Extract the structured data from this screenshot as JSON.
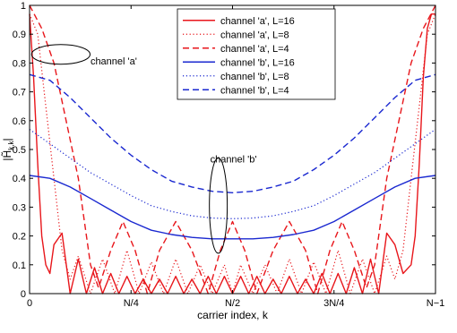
{
  "chart_data": {
    "type": "line",
    "title": "",
    "xlabel": "carrier index, k",
    "ylabel": "|H̃k,k|",
    "ylabel_main": "|H̃",
    "ylabel_sub": "k,k",
    "ylabel_close": "|",
    "xlim": [
      0,
      1
    ],
    "ylim": [
      0,
      1
    ],
    "x_ticks": [
      {
        "value": 0,
        "label": "0"
      },
      {
        "value": 0.25,
        "label": "N/4"
      },
      {
        "value": 0.5,
        "label": "N/2"
      },
      {
        "value": 0.75,
        "label": "3N/4"
      },
      {
        "value": 1,
        "label": "N−1"
      }
    ],
    "y_ticks": [
      {
        "value": 0,
        "label": "0"
      },
      {
        "value": 0.1,
        "label": "0.1"
      },
      {
        "value": 0.2,
        "label": "0.2"
      },
      {
        "value": 0.3,
        "label": "0.3"
      },
      {
        "value": 0.4,
        "label": "0.4"
      },
      {
        "value": 0.5,
        "label": "0.5"
      },
      {
        "value": 0.6,
        "label": "0.6"
      },
      {
        "value": 0.7,
        "label": "0.7"
      },
      {
        "value": 0.8,
        "label": "0.8"
      },
      {
        "value": 0.9,
        "label": "0.9"
      },
      {
        "value": 1,
        "label": "1"
      }
    ],
    "grid": false,
    "legend_position": "top-center",
    "colors": {
      "channel_a": "#e8161b",
      "channel_b": "#1a28d0",
      "axis": "#000000"
    },
    "series": [
      {
        "name": "channel 'a', L=16",
        "color": "#e8161b",
        "dash": "solid",
        "x": [
          0,
          0.01,
          0.02,
          0.03,
          0.04,
          0.05,
          0.06,
          0.08,
          0.1,
          0.12,
          0.14,
          0.16,
          0.18,
          0.2,
          0.22,
          0.24,
          0.26,
          0.28,
          0.3,
          0.32,
          0.34,
          0.36,
          0.38,
          0.4,
          0.42,
          0.44,
          0.46,
          0.48,
          0.5,
          0.52,
          0.54,
          0.56,
          0.58,
          0.6,
          0.62,
          0.64,
          0.66,
          0.68,
          0.7,
          0.72,
          0.74,
          0.76,
          0.78,
          0.8,
          0.82,
          0.84,
          0.86,
          0.88,
          0.9,
          0.92,
          0.94,
          0.95,
          0.96,
          0.97,
          0.98,
          0.99,
          1
        ],
        "y": [
          0.97,
          0.75,
          0.45,
          0.2,
          0.1,
          0.07,
          0.17,
          0.21,
          0.0,
          0.12,
          0.0,
          0.09,
          0.0,
          0.07,
          0.0,
          0.06,
          0.0,
          0.05,
          0.0,
          0.05,
          0.0,
          0.06,
          0.0,
          0.05,
          0.0,
          0.06,
          0.0,
          0.06,
          0.0,
          0.06,
          0.0,
          0.06,
          0.0,
          0.05,
          0.0,
          0.06,
          0.0,
          0.05,
          0.0,
          0.07,
          0.0,
          0.07,
          0.0,
          0.09,
          0.0,
          0.12,
          0.0,
          0.21,
          0.17,
          0.07,
          0.1,
          0.2,
          0.45,
          0.75,
          0.92,
          0.97,
          0.97
        ]
      },
      {
        "name": "channel 'a', L=8",
        "color": "#e8161b",
        "dash": "dotted",
        "x": [
          0,
          0.02,
          0.04,
          0.06,
          0.08,
          0.1,
          0.12,
          0.15,
          0.18,
          0.21,
          0.24,
          0.27,
          0.3,
          0.33,
          0.36,
          0.39,
          0.42,
          0.45,
          0.48,
          0.5,
          0.52,
          0.55,
          0.58,
          0.61,
          0.64,
          0.67,
          0.7,
          0.73,
          0.76,
          0.79,
          0.82,
          0.85,
          0.88,
          0.9,
          0.92,
          0.94,
          0.96,
          0.98,
          1
        ],
        "y": [
          0.97,
          0.9,
          0.65,
          0.4,
          0.15,
          0.05,
          0.13,
          0.0,
          0.12,
          0.0,
          0.15,
          0.0,
          0.11,
          0.0,
          0.12,
          0.0,
          0.1,
          0.0,
          0.1,
          0.0,
          0.1,
          0.0,
          0.1,
          0.0,
          0.12,
          0.0,
          0.11,
          0.0,
          0.15,
          0.0,
          0.12,
          0.0,
          0.13,
          0.05,
          0.15,
          0.4,
          0.65,
          0.9,
          0.97
        ]
      },
      {
        "name": "channel 'a', L=4",
        "color": "#e8161b",
        "dash": "dashed",
        "x": [
          0,
          0.03,
          0.06,
          0.09,
          0.12,
          0.15,
          0.17,
          0.2,
          0.23,
          0.26,
          0.29,
          0.32,
          0.36,
          0.4,
          0.44,
          0.47,
          0.5,
          0.53,
          0.56,
          0.6,
          0.64,
          0.68,
          0.71,
          0.74,
          0.77,
          0.8,
          0.83,
          0.85,
          0.88,
          0.91,
          0.94,
          0.97,
          1
        ],
        "y": [
          1.0,
          0.92,
          0.8,
          0.6,
          0.4,
          0.1,
          0.02,
          0.15,
          0.25,
          0.15,
          0.0,
          0.15,
          0.25,
          0.15,
          0.0,
          0.15,
          0.25,
          0.15,
          0.0,
          0.15,
          0.25,
          0.15,
          0.0,
          0.15,
          0.25,
          0.15,
          0.02,
          0.1,
          0.4,
          0.6,
          0.8,
          0.92,
          1.0
        ]
      },
      {
        "name": "channel 'b', L=16",
        "color": "#1a28d0",
        "dash": "solid",
        "x": [
          0,
          0.05,
          0.1,
          0.15,
          0.2,
          0.25,
          0.3,
          0.35,
          0.4,
          0.45,
          0.5,
          0.55,
          0.6,
          0.65,
          0.7,
          0.75,
          0.8,
          0.85,
          0.9,
          0.95,
          1
        ],
        "y": [
          0.41,
          0.4,
          0.37,
          0.33,
          0.29,
          0.25,
          0.22,
          0.205,
          0.195,
          0.19,
          0.19,
          0.19,
          0.195,
          0.205,
          0.22,
          0.25,
          0.29,
          0.33,
          0.37,
          0.4,
          0.41
        ]
      },
      {
        "name": "channel 'b', L=8",
        "color": "#1a28d0",
        "dash": "dotted",
        "x": [
          0,
          0.05,
          0.1,
          0.15,
          0.2,
          0.25,
          0.3,
          0.35,
          0.4,
          0.45,
          0.5,
          0.55,
          0.6,
          0.65,
          0.7,
          0.75,
          0.8,
          0.85,
          0.9,
          0.95,
          1
        ],
        "y": [
          0.57,
          0.52,
          0.47,
          0.42,
          0.38,
          0.34,
          0.305,
          0.285,
          0.27,
          0.262,
          0.26,
          0.262,
          0.27,
          0.285,
          0.305,
          0.34,
          0.38,
          0.42,
          0.47,
          0.52,
          0.57
        ]
      },
      {
        "name": "channel 'b', L=4",
        "color": "#1a28d0",
        "dash": "dashed",
        "x": [
          0,
          0.05,
          0.1,
          0.15,
          0.2,
          0.25,
          0.3,
          0.35,
          0.4,
          0.45,
          0.5,
          0.55,
          0.6,
          0.65,
          0.7,
          0.75,
          0.8,
          0.85,
          0.9,
          0.95,
          1
        ],
        "y": [
          0.76,
          0.74,
          0.68,
          0.61,
          0.54,
          0.48,
          0.43,
          0.39,
          0.37,
          0.355,
          0.35,
          0.355,
          0.37,
          0.39,
          0.43,
          0.48,
          0.54,
          0.61,
          0.68,
          0.74,
          0.76
        ]
      }
    ],
    "annotations": [
      {
        "text": "channel 'a'",
        "ellipse_center": [
          0.077,
          0.83
        ],
        "ellipse_radii": [
          0.072,
          0.034
        ],
        "text_at": [
          0.15,
          0.795
        ]
      },
      {
        "text": "channel 'b'",
        "ellipse_center": [
          0.465,
          0.305
        ],
        "ellipse_radii": [
          0.022,
          0.165
        ],
        "text_at": [
          0.445,
          0.455
        ]
      }
    ]
  }
}
